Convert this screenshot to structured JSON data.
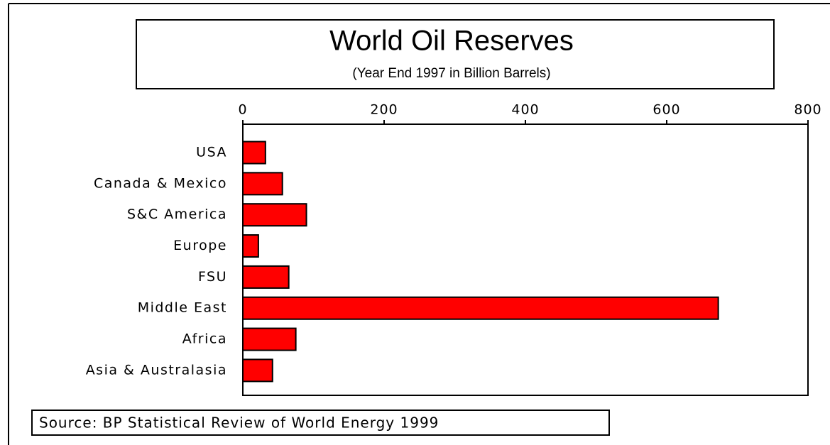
{
  "chart_data": {
    "type": "bar",
    "orientation": "horizontal",
    "title": "World Oil Reserves",
    "subtitle": "(Year End 1997 in Billion Barrels)",
    "source": "Source: BP Statistical Review of World Energy 1999",
    "categories": [
      "USA",
      "Canada & Mexico",
      "S&C America",
      "Europe",
      "FSU",
      "Middle East",
      "Africa",
      "Asia & Australasia"
    ],
    "values": [
      32,
      56,
      90,
      22,
      65,
      673,
      75,
      42
    ],
    "color": "#ff0000",
    "xlim": [
      0,
      800
    ],
    "xticks": [
      0,
      200,
      400,
      600,
      800
    ]
  }
}
